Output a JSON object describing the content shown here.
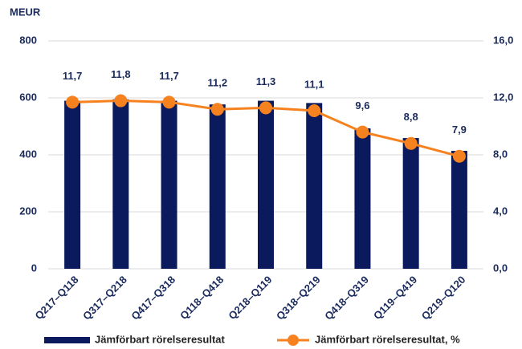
{
  "chart_data": {
    "type": "bar_line",
    "y_label": "MEUR",
    "categories": [
      "Q217–Q118",
      "Q317–Q218",
      "Q417–Q318",
      "Q118–Q418",
      "Q218–Q119",
      "Q318–Q219",
      "Q418–Q319",
      "Q119–Q419",
      "Q219–Q120"
    ],
    "series": [
      {
        "name": "Jämförbart rörelseresultat",
        "type": "bar",
        "color": "#0b1a5c",
        "values": [
          590,
          595,
          590,
          577,
          590,
          582,
          493,
          459,
          414
        ]
      },
      {
        "name": "Jämförbart rörelseresultat, %",
        "type": "line",
        "axis": "y2",
        "color": "#f5821f",
        "values": [
          11.7,
          11.8,
          11.7,
          11.2,
          11.3,
          11.1,
          9.6,
          8.8,
          7.9
        ],
        "value_labels": [
          "11,7",
          "11,8",
          "11,7",
          "11,2",
          "11,3",
          "11,1",
          "9,6",
          "8,8",
          "7,9"
        ]
      }
    ],
    "ylim": [
      0,
      800
    ],
    "yticks": [
      0,
      200,
      400,
      600,
      800
    ],
    "y2lim": [
      0,
      16
    ],
    "y2ticks": [
      {
        "value": 0,
        "label": "0,0"
      },
      {
        "value": 4,
        "label": "4,0"
      },
      {
        "value": 8,
        "label": "8,0"
      },
      {
        "value": 12,
        "label": "12,0"
      },
      {
        "value": 16,
        "label": "16,0"
      }
    ],
    "grid": true,
    "legend": "bottom"
  }
}
